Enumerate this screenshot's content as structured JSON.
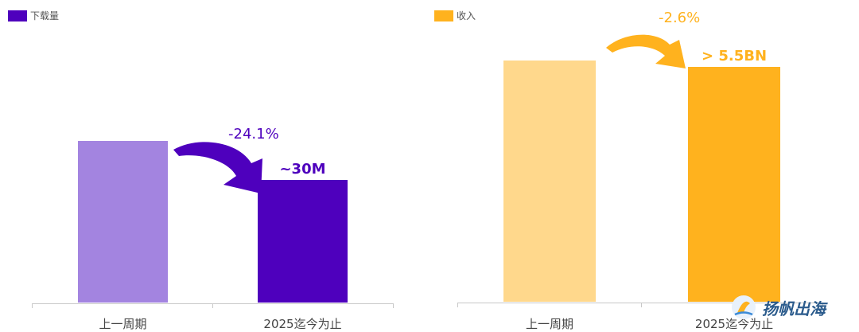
{
  "chart_data": [
    {
      "type": "bar",
      "legend": "下载量",
      "legend_placement": "top-left",
      "categories": [
        "上一周期",
        "2025迄今为止"
      ],
      "values": [
        39.5,
        30
      ],
      "value_labels": [
        "",
        "~30M"
      ],
      "change_label": "-24.1%",
      "ylim": [
        0,
        70
      ],
      "grid": false,
      "colors": [
        "#a384e0",
        "#4e00bd"
      ],
      "arrow_color": "#4e00bd"
    },
    {
      "type": "bar",
      "legend": "收入",
      "legend_placement": "top-left",
      "categories": [
        "上一周期",
        "2025迄今为止"
      ],
      "values": [
        5.65,
        5.5
      ],
      "value_labels": [
        "",
        "> 5.5BN"
      ],
      "change_label": "-2.6%",
      "ylim": [
        0,
        6.7
      ],
      "grid": false,
      "colors": [
        "#ffd88c",
        "#ffb21e"
      ],
      "arrow_color": "#ffb21e"
    }
  ],
  "watermark": {
    "text": "扬帆出海",
    "icon": "sail-logo-icon"
  }
}
